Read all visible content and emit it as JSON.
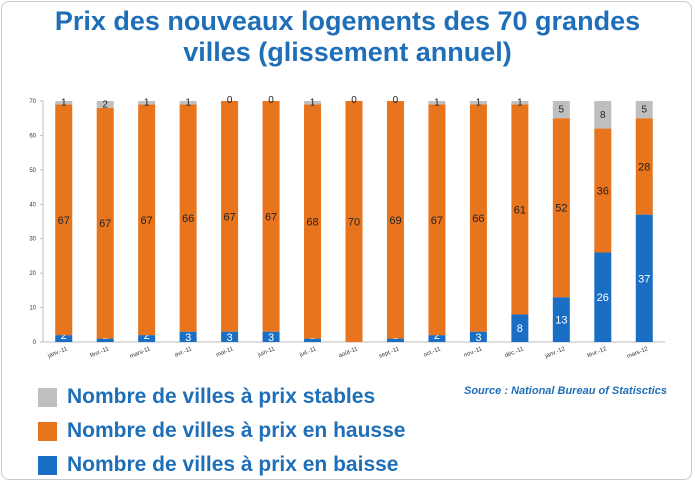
{
  "title_line1": "Prix des nouveaux logements des 70 grandes",
  "title_line2": "villes (glissement annuel)",
  "source": "Source : National Bureau of Statisctics",
  "colors": {
    "stable": "#bfbfbf",
    "hausse": "#e8741e",
    "baisse": "#1a6fc4",
    "accent": "#1f6fb8"
  },
  "legend": [
    {
      "key": "stable",
      "label": "Nombre de villes à prix stables"
    },
    {
      "key": "hausse",
      "label": "Nombre de villes à prix en hausse"
    },
    {
      "key": "baisse",
      "label": "Nombre de villes à prix en baisse"
    }
  ],
  "chart_data": {
    "type": "bar",
    "stacked": true,
    "categories": [
      "janv.-11",
      "févr.-11",
      "mars-11",
      "avr.-11",
      "mai-11",
      "juin-11",
      "juil.-11",
      "août-11",
      "sept.-11",
      "oct.-11",
      "nov.-11",
      "déc.-11",
      "janv.-12",
      "févr.-12",
      "mars-12"
    ],
    "series": [
      {
        "name": "Nombre de villes à prix en baisse",
        "key": "baisse",
        "values": [
          2,
          1,
          2,
          3,
          3,
          3,
          1,
          0,
          1,
          2,
          3,
          8,
          13,
          26,
          37
        ]
      },
      {
        "name": "Nombre de villes à prix en hausse",
        "key": "hausse",
        "values": [
          67,
          67,
          67,
          66,
          67,
          67,
          68,
          70,
          69,
          67,
          66,
          61,
          52,
          36,
          28
        ]
      },
      {
        "name": "Nombre de villes à prix stables",
        "key": "stable",
        "values": [
          1,
          2,
          1,
          1,
          0,
          0,
          1,
          0,
          0,
          1,
          1,
          1,
          5,
          8,
          5
        ]
      }
    ],
    "yticks": [
      0,
      10,
      20,
      30,
      40,
      50,
      60,
      70
    ],
    "ylim": [
      0,
      70
    ],
    "grid": false,
    "legend_position": "bottom"
  }
}
